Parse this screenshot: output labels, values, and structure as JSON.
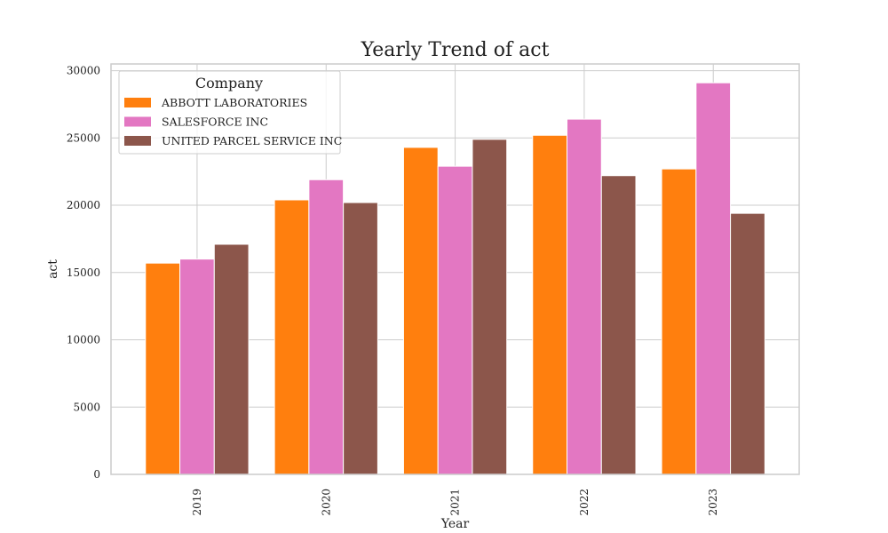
{
  "chart_data": {
    "type": "bar",
    "title": "Yearly Trend of act",
    "xlabel": "Year",
    "ylabel": "act",
    "categories": [
      "2019",
      "2020",
      "2021",
      "2022",
      "2023"
    ],
    "ylim": [
      0,
      30500
    ],
    "yticks": [
      0,
      5000,
      10000,
      15000,
      20000,
      25000,
      30000
    ],
    "grid": true,
    "legend": {
      "title": "Company",
      "placement": "top-left"
    },
    "series": [
      {
        "name": "ABBOTT LABORATORIES",
        "color": "#ff7f0e",
        "values": [
          15700,
          20400,
          24300,
          25200,
          22700
        ]
      },
      {
        "name": "SALESFORCE INC",
        "color": "#e377c2",
        "values": [
          16000,
          21900,
          22900,
          26400,
          29100
        ]
      },
      {
        "name": "UNITED PARCEL SERVICE INC",
        "color": "#8c564b",
        "values": [
          17100,
          20200,
          24900,
          22200,
          19400
        ]
      }
    ]
  }
}
